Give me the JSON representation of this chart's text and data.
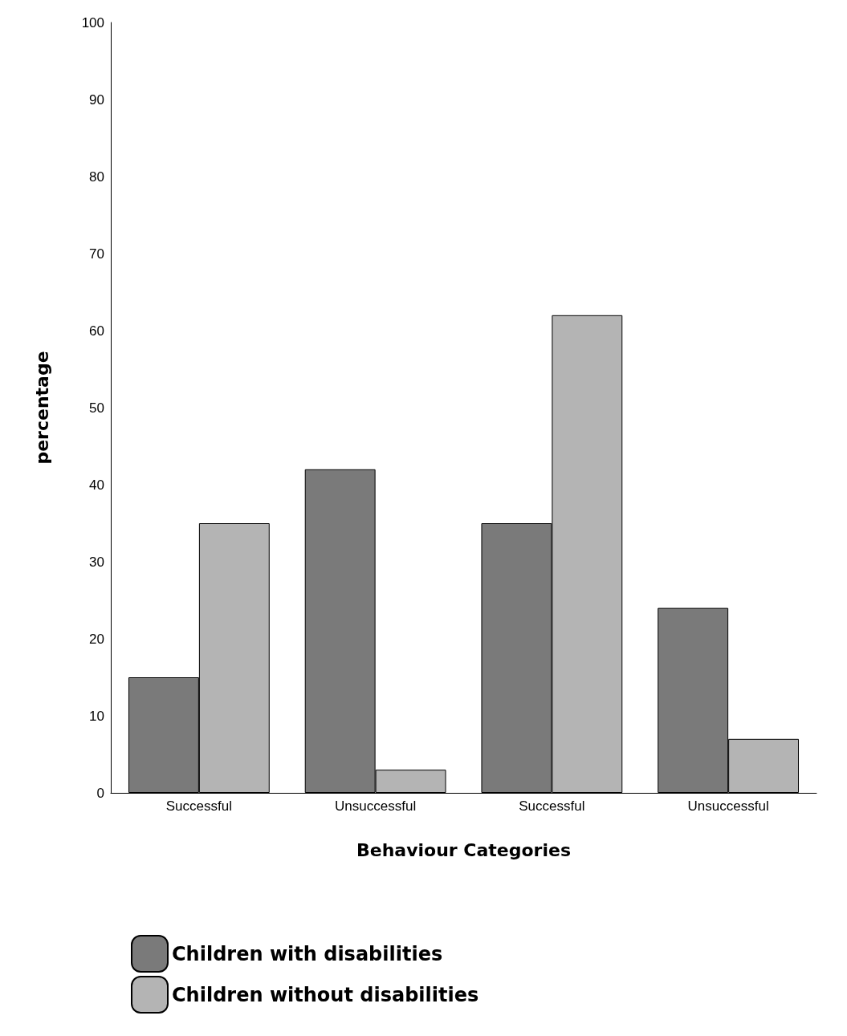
{
  "chart_data": {
    "type": "bar",
    "xlabel": "Behaviour Categories",
    "ylabel": "percentage",
    "categories": [
      "Successful",
      "Unsuccessful",
      "Successful",
      "Unsuccessful"
    ],
    "series": [
      {
        "name": "Children with disabilities",
        "color": "#7a7a7a",
        "values": [
          15,
          42,
          35,
          24
        ]
      },
      {
        "name": "Children without disabilities",
        "color": "#b4b4b4",
        "values": [
          35,
          3,
          62,
          7
        ]
      }
    ],
    "ylim": [
      0,
      100
    ],
    "yticks": [
      0,
      10,
      20,
      30,
      40,
      50,
      60,
      70,
      80,
      90,
      100
    ],
    "grid": false,
    "legend": "bottom left"
  }
}
